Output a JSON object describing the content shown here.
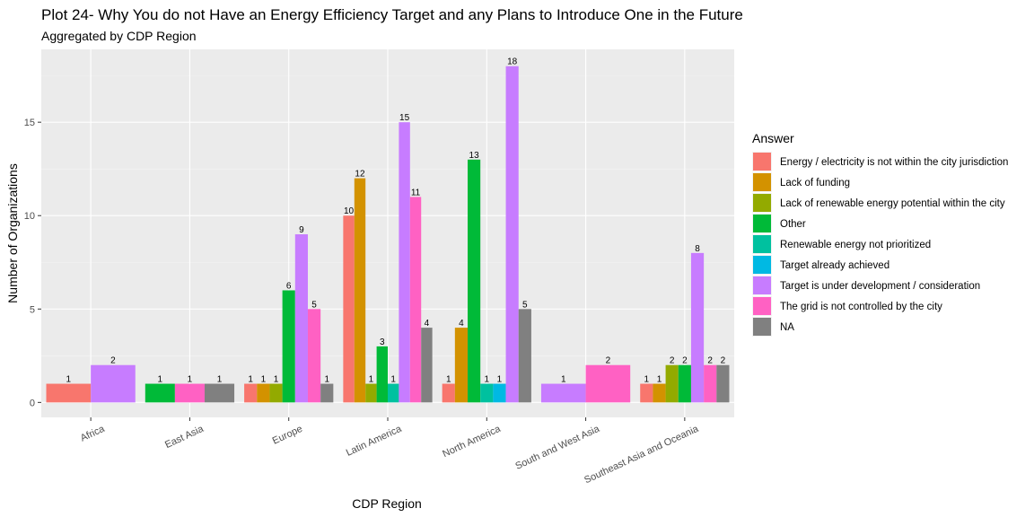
{
  "chart_data": {
    "type": "bar",
    "title": "Plot 24- Why You do not Have an Energy Efficiency Target and any Plans to Introduce One in the Future",
    "subtitle": "Aggregated by CDP Region",
    "xlabel": "CDP Region",
    "ylabel": "Number of Organizations",
    "ylim": [
      -0.8,
      18.9
    ],
    "yticks": [
      0,
      5,
      10,
      15
    ],
    "grid": true,
    "legend_title": "Answer",
    "legend_position": "right",
    "categories": [
      "Africa",
      "East Asia",
      "Europe",
      "Latin America",
      "North America",
      "South and West Asia",
      "Southeast Asia and Oceania"
    ],
    "answers": [
      {
        "name": "Energy / electricity is not within the city jurisdiction",
        "color": "#F8766D"
      },
      {
        "name": "Lack of funding",
        "color": "#D39200"
      },
      {
        "name": "Lack of renewable energy potential within the city",
        "color": "#93AA00"
      },
      {
        "name": "Other",
        "color": "#00BA38"
      },
      {
        "name": "Renewable energy not prioritized",
        "color": "#00C19F"
      },
      {
        "name": "Target already achieved",
        "color": "#00B9E3"
      },
      {
        "name": "Target is under development / consideration",
        "color": "#C77CFF"
      },
      {
        "name": "The grid is not controlled by the city",
        "color": "#FF61C3"
      },
      {
        "name": "NA",
        "color": "#808080"
      }
    ],
    "groups": [
      {
        "category": "Africa",
        "bars": [
          {
            "answer": 0,
            "value": 1
          },
          {
            "answer": 6,
            "value": 2
          }
        ]
      },
      {
        "category": "East Asia",
        "bars": [
          {
            "answer": 3,
            "value": 1
          },
          {
            "answer": 7,
            "value": 1
          },
          {
            "answer": 8,
            "value": 1
          }
        ]
      },
      {
        "category": "Europe",
        "bars": [
          {
            "answer": 0,
            "value": 1
          },
          {
            "answer": 1,
            "value": 1
          },
          {
            "answer": 2,
            "value": 1
          },
          {
            "answer": 3,
            "value": 6
          },
          {
            "answer": 6,
            "value": 9
          },
          {
            "answer": 7,
            "value": 5
          },
          {
            "answer": 8,
            "value": 1
          }
        ]
      },
      {
        "category": "Latin America",
        "bars": [
          {
            "answer": 0,
            "value": 10
          },
          {
            "answer": 1,
            "value": 12
          },
          {
            "answer": 2,
            "value": 1
          },
          {
            "answer": 3,
            "value": 3
          },
          {
            "answer": 4,
            "value": 1
          },
          {
            "answer": 6,
            "value": 15
          },
          {
            "answer": 7,
            "value": 11
          },
          {
            "answer": 8,
            "value": 4
          }
        ]
      },
      {
        "category": "North America",
        "bars": [
          {
            "answer": 0,
            "value": 1
          },
          {
            "answer": 1,
            "value": 4
          },
          {
            "answer": 3,
            "value": 13
          },
          {
            "answer": 4,
            "value": 1
          },
          {
            "answer": 5,
            "value": 1
          },
          {
            "answer": 6,
            "value": 18
          },
          {
            "answer": 8,
            "value": 5
          }
        ]
      },
      {
        "category": "South and West Asia",
        "bars": [
          {
            "answer": 6,
            "value": 1
          },
          {
            "answer": 7,
            "value": 2
          }
        ]
      },
      {
        "category": "Southeast Asia and Oceania",
        "bars": [
          {
            "answer": 0,
            "value": 1
          },
          {
            "answer": 1,
            "value": 1
          },
          {
            "answer": 2,
            "value": 2
          },
          {
            "answer": 3,
            "value": 2
          },
          {
            "answer": 6,
            "value": 8
          },
          {
            "answer": 7,
            "value": 2
          },
          {
            "answer": 8,
            "value": 2
          }
        ]
      }
    ]
  }
}
